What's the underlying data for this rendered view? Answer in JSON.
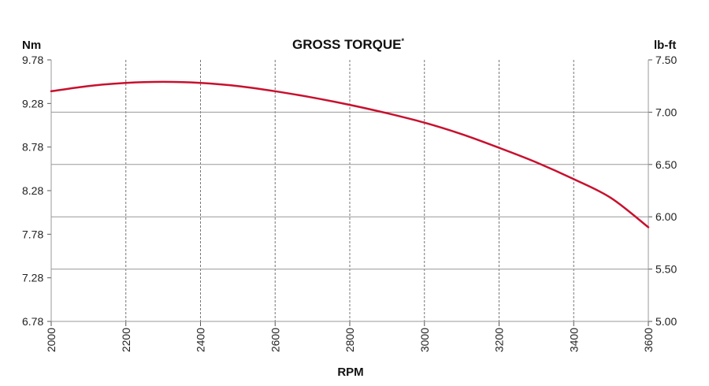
{
  "chart_data": {
    "type": "line",
    "title": "GROSS TORQUE",
    "title_marker": "*",
    "xlabel": "RPM",
    "ylabel_left": "Nm",
    "ylabel_right": "lb-ft",
    "xlim": [
      2000,
      3600
    ],
    "x_ticks": [
      "2000",
      "2200",
      "2400",
      "2600",
      "2800",
      "3000",
      "3200",
      "3400",
      "3600"
    ],
    "ylim_left": [
      6.78,
      9.78
    ],
    "y_ticks_left": [
      "6.78",
      "7.28",
      "7.78",
      "8.28",
      "8.78",
      "9.28",
      "9.78"
    ],
    "ylim_right": [
      5.0,
      7.5
    ],
    "y_ticks_right": [
      "5.00",
      "5.50",
      "6.00",
      "6.50",
      "7.00",
      "7.50"
    ],
    "grid": true,
    "series": [
      {
        "axis": "right",
        "color": "#c8102e",
        "x": [
          2000,
          2100,
          2200,
          2300,
          2400,
          2500,
          2600,
          2700,
          2800,
          2900,
          3000,
          3100,
          3200,
          3300,
          3400,
          3500,
          3600
        ],
        "y": [
          7.2,
          7.25,
          7.28,
          7.29,
          7.28,
          7.25,
          7.2,
          7.14,
          7.07,
          6.99,
          6.9,
          6.79,
          6.66,
          6.52,
          6.36,
          6.18,
          5.9
        ]
      }
    ]
  }
}
